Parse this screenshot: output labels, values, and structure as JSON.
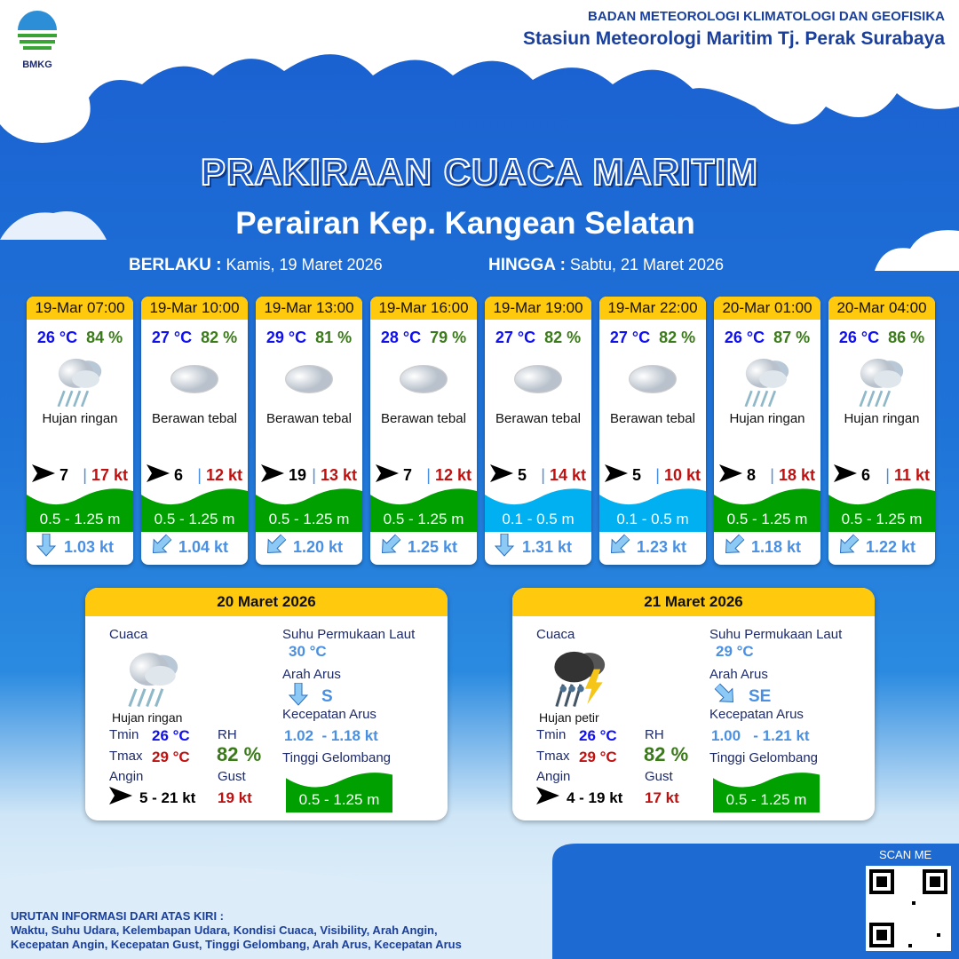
{
  "header": {
    "logo_text": "BMKG",
    "org_line1": "BADAN METEOROLOGI KLIMATOLOGI DAN GEOFISIKA",
    "org_line2": "Stasiun Meteorologi Maritim Tj. Perak Surabaya"
  },
  "title": "PRAKIRAAN CUACA MARITIM",
  "subtitle": "Perairan Kep. Kangean Selatan",
  "validity": {
    "from_label": "BERLAKU :",
    "from_value": "Kamis, 19 Maret 2026",
    "to_label": "HINGGA :",
    "to_value": "Sabtu, 21 Maret 2026"
  },
  "colors": {
    "header_yellow": "#ffc90e",
    "wave_green": "#00a000",
    "wave_blue": "#00b0f0",
    "temp_blue": "#1010ee",
    "rh_green": "#3b7a1a",
    "gust_red": "#c01010",
    "current_blue": "#4a90e2"
  },
  "forecasts": [
    {
      "time": "19-Mar 07:00",
      "temp": "26 °C",
      "rh": "84 %",
      "icon": "light-rain-icon",
      "cond": "Hujan ringan",
      "wind_dir": "E",
      "wind": "7",
      "gust": "17 kt",
      "wave": "0.5 - 1.25 m",
      "wave_color": "#00a000",
      "cur_dir": "S",
      "cur": "1.03 kt"
    },
    {
      "time": "19-Mar 10:00",
      "temp": "27 °C",
      "rh": "82 %",
      "icon": "cloud-icon",
      "cond": "Berawan tebal",
      "wind_dir": "E",
      "wind": "6",
      "gust": "12 kt",
      "wave": "0.5 - 1.25 m",
      "wave_color": "#00a000",
      "cur_dir": "SW",
      "cur": "1.04 kt"
    },
    {
      "time": "19-Mar 13:00",
      "temp": "29 °C",
      "rh": "81 %",
      "icon": "cloud-icon",
      "cond": "Berawan tebal",
      "wind_dir": "E",
      "wind": "19",
      "gust": "13 kt",
      "wave": "0.5 - 1.25 m",
      "wave_color": "#00a000",
      "cur_dir": "SW",
      "cur": "1.20 kt"
    },
    {
      "time": "19-Mar 16:00",
      "temp": "28 °C",
      "rh": "79 %",
      "icon": "cloud-icon",
      "cond": "Berawan tebal",
      "wind_dir": "E",
      "wind": "7",
      "gust": "12 kt",
      "wave": "0.5 - 1.25 m",
      "wave_color": "#00a000",
      "cur_dir": "SW",
      "cur": "1.25 kt"
    },
    {
      "time": "19-Mar 19:00",
      "temp": "27 °C",
      "rh": "82 %",
      "icon": "cloud-icon",
      "cond": "Berawan tebal",
      "wind_dir": "E",
      "wind": "5",
      "gust": "14 kt",
      "wave": "0.1 - 0.5 m",
      "wave_color": "#00b0f0",
      "cur_dir": "S",
      "cur": "1.31 kt"
    },
    {
      "time": "19-Mar 22:00",
      "temp": "27 °C",
      "rh": "82 %",
      "icon": "cloud-icon",
      "cond": "Berawan tebal",
      "wind_dir": "E",
      "wind": "5",
      "gust": "10 kt",
      "wave": "0.1 - 0.5 m",
      "wave_color": "#00b0f0",
      "cur_dir": "SW",
      "cur": "1.23 kt"
    },
    {
      "time": "20-Mar 01:00",
      "temp": "26 °C",
      "rh": "87 %",
      "icon": "light-rain-icon",
      "cond": "Hujan ringan",
      "wind_dir": "E",
      "wind": "8",
      "gust": "18 kt",
      "wave": "0.5 - 1.25 m",
      "wave_color": "#00a000",
      "cur_dir": "SW",
      "cur": "1.18 kt"
    },
    {
      "time": "20-Mar 04:00",
      "temp": "26 °C",
      "rh": "86 %",
      "icon": "light-rain-icon",
      "cond": "Hujan ringan",
      "wind_dir": "E",
      "wind": "6",
      "gust": "11 kt",
      "wave": "0.5 - 1.25 m",
      "wave_color": "#00a000",
      "cur_dir": "SW",
      "cur": "1.22 kt"
    }
  ],
  "labels": {
    "cuaca": "Cuaca",
    "sst": "Suhu Permukaan Laut",
    "arah_arus": "Arah Arus",
    "kec_arus": "Kecepatan Arus",
    "tinggi": "Tinggi Gelombang",
    "tmin": "Tmin",
    "tmax": "Tmax",
    "rh": "RH",
    "angin": "Angin",
    "gust": "Gust"
  },
  "daily": [
    {
      "date": "20 Maret 2026",
      "icon": "light-rain-icon",
      "cond": "Hujan ringan",
      "tmin": "26 °C",
      "tmax": "29 °C",
      "rh": "82 %",
      "wind_dir": "E",
      "wind": "5  - 21 kt",
      "gust": "19 kt",
      "sst": "30 °C",
      "cur_dir": "S",
      "cur_dir_label": "S",
      "cur": "1.02  - 1.18 kt",
      "wave": "0.5 - 1.25 m"
    },
    {
      "date": "21 Maret 2026",
      "icon": "thunderstorm-icon",
      "cond": "Hujan petir",
      "tmin": "26 °C",
      "tmax": "29 °C",
      "rh": "82 %",
      "wind_dir": "E",
      "wind": "4  - 19 kt",
      "gust": "17 kt",
      "sst": "29 °C",
      "cur_dir": "SE",
      "cur_dir_label": "SE",
      "cur": "1.00   - 1.21 kt",
      "wave": "0.5 - 1.25 m"
    }
  ],
  "footer": {
    "scan": "SCAN ME",
    "info_title": "URUTAN INFORMASI DARI ATAS KIRI :",
    "info_line1": "Waktu, Suhu Udara, Kelembapan Udara, Kondisi Cuaca, Visibility, Arah Angin,",
    "info_line2": "Kecepatan Angin, Kecepatan Gust, Tinggi Gelombang, Arah Arus, Kecepatan Arus"
  }
}
